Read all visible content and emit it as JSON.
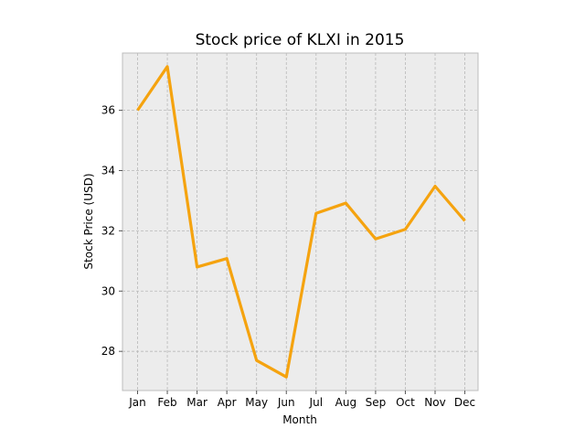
{
  "chart_data": {
    "type": "line",
    "title": "Stock price of KLXI in 2015",
    "xlabel": "Month",
    "ylabel": "Stock Price (USD)",
    "categories": [
      "Jan",
      "Feb",
      "Mar",
      "Apr",
      "May",
      "Jun",
      "Jul",
      "Aug",
      "Sep",
      "Oct",
      "Nov",
      "Dec"
    ],
    "values": [
      36.0,
      37.45,
      30.8,
      31.08,
      27.7,
      27.15,
      32.58,
      32.92,
      31.73,
      32.05,
      33.48,
      32.33
    ],
    "yticks": [
      28,
      30,
      32,
      34,
      36
    ],
    "ylim": [
      26.7,
      37.9
    ],
    "grid": true,
    "colors": {
      "line": "#f5a30f",
      "plot_background": "#ececec"
    }
  }
}
